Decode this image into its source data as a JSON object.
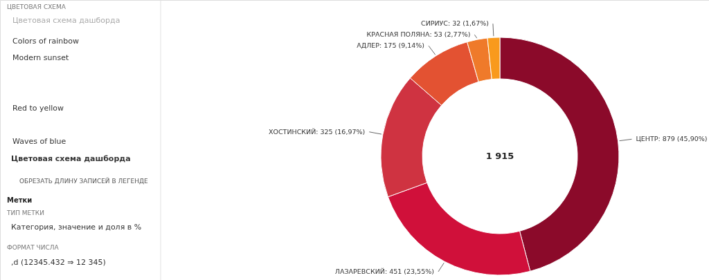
{
  "chart_data": {
    "type": "donut",
    "categories": [
      "ЦЕНТР",
      "ЛАЗАРЕВСКИЙ",
      "ХОСТИНСКИЙ",
      "АДЛЕР",
      "КРАСНАЯ ПОЛЯНА",
      "СИРИУС"
    ],
    "values": [
      879,
      451,
      325,
      175,
      53,
      32
    ],
    "colors": [
      "#8b0a2a",
      "#d0103a",
      "#cf3341",
      "#e35232",
      "#ef7a2a",
      "#f99a1c"
    ],
    "value_labels": [
      "879 (45,90%)",
      "451 (23,55%)",
      "325 (16,97%)",
      "175 (9,14%)",
      "53 (2,77%)",
      "32 (1,67%)"
    ],
    "annotations": [
      "1 915",
      "ЦВЕТОВАЯ СХЕМА",
      "Цветовая схема дашборда",
      "Colors of rainbow",
      "Modern sunset",
      "Red to yellow",
      "Waves of blue",
      "Цветовая схема дашборда",
      "ОБРЕЗАТЬ ДЛИНУ ЗАПИСЕЙ В ЛЕГЕНДЕ",
      "Метки",
      "ТИП МЕТКИ",
      "Категория, значение и доля в %",
      "ФОРМАТ ЧИСЛА",
      ",d (12345.432 ⇒ 12 345)"
    ]
  }
}
